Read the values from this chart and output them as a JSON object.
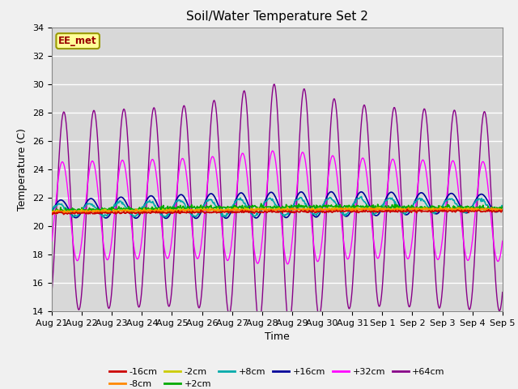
{
  "title": "Soil/Water Temperature Set 2",
  "xlabel": "Time",
  "ylabel": "Temperature (C)",
  "station_label": "EE_met",
  "ylim": [
    14,
    34
  ],
  "yticks": [
    14,
    16,
    18,
    20,
    22,
    24,
    26,
    28,
    30,
    32,
    34
  ],
  "x_labels": [
    "Aug 21",
    "Aug 22",
    "Aug 23",
    "Aug 24",
    "Aug 25",
    "Aug 26",
    "Aug 27",
    "Aug 28",
    "Aug 29",
    "Aug 30",
    "Aug 31",
    "Sep 1",
    "Sep 2",
    "Sep 3",
    "Sep 4",
    "Sep 5"
  ],
  "series_colors": {
    "-16cm": "#cc0000",
    "-8cm": "#ff8800",
    "-2cm": "#cccc00",
    "+2cm": "#00aa00",
    "+8cm": "#00aaaa",
    "+16cm": "#000099",
    "+32cm": "#ff00ff",
    "+64cm": "#880088"
  },
  "plot_bg_color": "#d8d8d8",
  "fig_bg_color": "#f0f0f0",
  "n_days": 15,
  "pts_per_day": 48
}
